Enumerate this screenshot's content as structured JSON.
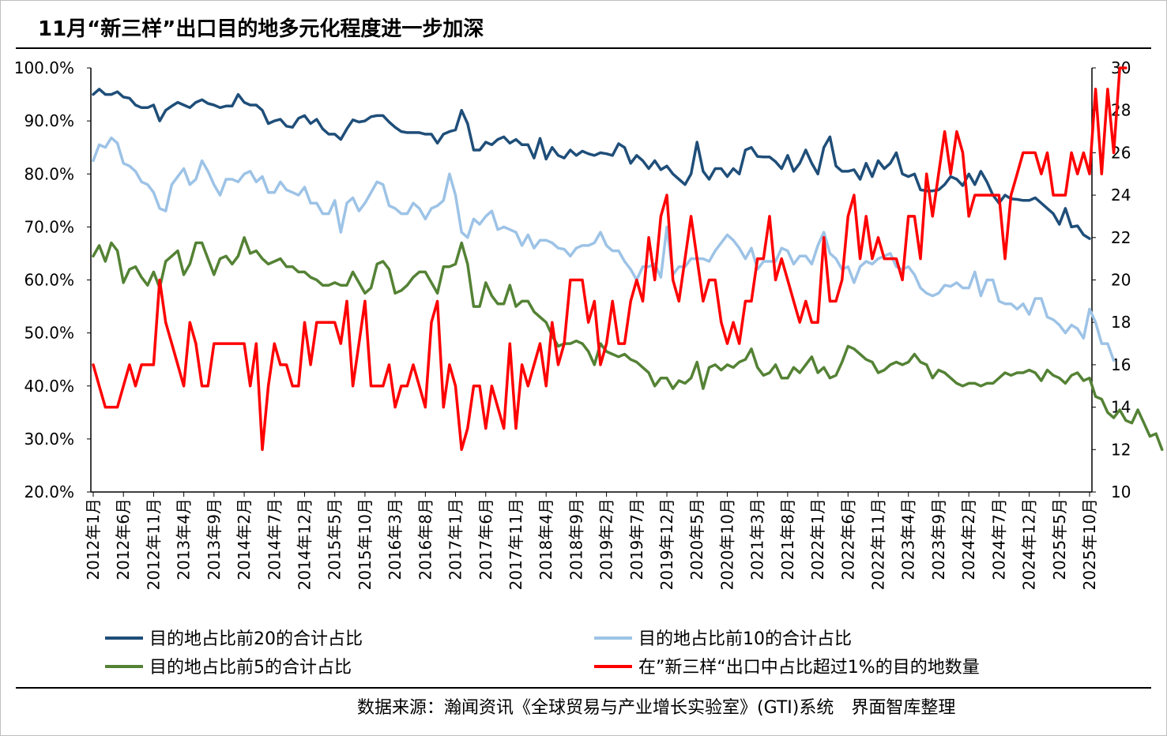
{
  "header": {
    "title": "11月“新三样”出口目的地多元化程度进一步加深"
  },
  "footer": {
    "source": "数据来源：瀚闻资讯《全球贸易与产业增长实验室》(GTI)系统　界面智库整理"
  },
  "chart_data": {
    "type": "line",
    "title": "11月“新三样”出口目的地多元化程度进一步加深",
    "left_axis": {
      "min": 20,
      "max": 100,
      "step": 10,
      "labels": [
        "100.0%",
        "90.0%",
        "80.0%",
        "70.0%",
        "60.0%",
        "50.0%",
        "40.0%",
        "30.0%",
        "20.0%"
      ]
    },
    "right_axis": {
      "min": 10,
      "max": 30,
      "step": 2,
      "labels": [
        "30",
        "28",
        "26",
        "24",
        "22",
        "20",
        "18",
        "16",
        "14",
        "12",
        "10"
      ]
    },
    "x_labels": [
      "2012年1月",
      "2012年6月",
      "2012年11月",
      "2013年4月",
      "2013年9月",
      "2014年2月",
      "2014年7月",
      "2014年12月",
      "2015年5月",
      "2015年10月",
      "2016年3月",
      "2016年8月",
      "2017年1月",
      "2017年6月",
      "2017年11月",
      "2018年4月",
      "2018年9月",
      "2019年2月",
      "2019年7月",
      "2019年12月",
      "2020年5月",
      "2020年10月",
      "2021年3月",
      "2021年8月",
      "2022年1月",
      "2022年6月",
      "2022年11月",
      "2023年4月",
      "2023年9月",
      "2024年2月",
      "2024年7月",
      "2024年12月",
      "2025年5月",
      "2025年10月"
    ],
    "legend": [
      "目的地占比前20的合计占比",
      "目的地占比前10的合计占比",
      "目的地占比前5的合计占比",
      "在”新三样“出口中占比超过1%的目的地数量"
    ],
    "series": [
      {
        "name": "目的地占比前20的合计占比",
        "axis": "left",
        "color": "#1f4e79",
        "values": [
          95.0,
          96.0,
          95.0,
          95.0,
          95.5,
          94.5,
          94.3,
          93.0,
          92.5,
          92.5,
          93.0,
          90.0,
          92.0,
          92.8,
          93.5,
          93.0,
          92.5,
          93.5,
          94.0,
          93.3,
          93.0,
          92.5,
          92.8,
          92.8,
          95.0,
          93.5,
          93.0,
          93.0,
          92.0,
          89.5,
          90.0,
          90.3,
          89.0,
          88.8,
          90.5,
          91.0,
          89.5,
          90.3,
          88.5,
          87.5,
          87.5,
          86.5,
          88.5,
          90.2,
          89.8,
          90.0,
          90.8,
          91.0,
          91.0,
          89.8,
          88.8,
          88.0,
          87.8,
          87.8,
          87.8,
          87.5,
          87.5,
          85.8,
          87.5,
          88.0,
          88.3,
          92.0,
          89.5,
          84.5,
          84.5,
          86.0,
          85.5,
          86.5,
          87.0,
          85.8,
          86.5,
          85.5,
          85.5,
          83.0,
          86.7,
          82.8,
          85.0,
          83.5,
          83.0,
          84.5,
          83.5,
          84.3,
          83.8,
          83.5,
          84.0,
          83.8,
          83.5,
          85.7,
          85.0,
          82.0,
          83.5,
          82.5,
          81.0,
          82.5,
          80.8,
          81.5,
          80.0,
          79.0,
          78.0,
          80.0,
          86.0,
          80.5,
          79.0,
          81.0,
          81.0,
          79.5,
          81.0,
          80.0,
          84.5,
          85.0,
          83.3,
          83.2,
          83.2,
          82.3,
          81.0,
          83.5,
          80.5,
          82.0,
          84.5,
          82.0,
          80.0,
          85.0,
          87.0,
          81.5,
          80.5,
          80.5,
          80.8,
          79.0,
          82.0,
          79.5,
          82.5,
          81.0,
          82.0,
          84.0,
          80.0,
          79.5,
          80.0,
          77.0,
          76.8,
          76.8,
          77.0,
          78.0,
          79.5,
          79.0,
          77.8,
          80.0,
          78.0,
          80.5,
          78.5,
          76.0,
          74.5,
          76.0,
          75.3,
          75.2,
          75.0,
          75.0,
          75.5,
          74.5,
          73.5,
          72.5,
          70.5,
          73.5,
          70.0,
          70.2,
          68.5,
          67.8
        ]
      },
      {
        "name": "目的地占比前10的合计占比",
        "axis": "left",
        "color": "#9dc3e6",
        "values": [
          82.5,
          85.5,
          85.0,
          86.8,
          85.8,
          82.0,
          81.5,
          80.5,
          78.5,
          78.0,
          76.5,
          73.5,
          73.0,
          78.0,
          79.5,
          81.0,
          78.0,
          79.0,
          82.5,
          80.5,
          78.0,
          76.0,
          79.0,
          79.0,
          78.5,
          80.0,
          80.5,
          78.5,
          79.5,
          76.5,
          76.5,
          78.5,
          77.0,
          76.5,
          76.0,
          77.5,
          74.5,
          74.5,
          72.5,
          72.5,
          75.0,
          69.0,
          74.5,
          75.5,
          73.0,
          74.5,
          76.5,
          78.5,
          78.0,
          74.0,
          73.5,
          72.5,
          72.5,
          74.5,
          73.5,
          71.5,
          73.5,
          74.0,
          75.0,
          80.0,
          76.0,
          69.0,
          68.0,
          71.5,
          70.5,
          72.0,
          73.0,
          69.5,
          70.0,
          69.5,
          69.0,
          66.5,
          68.5,
          66.0,
          67.5,
          67.5,
          67.0,
          66.0,
          65.8,
          64.5,
          66.0,
          66.5,
          66.5,
          67.0,
          69.0,
          66.5,
          65.5,
          65.5,
          63.5,
          62.0,
          60.0,
          62.5,
          62.5,
          63.0,
          60.5,
          70.0,
          61.0,
          62.5,
          62.5,
          64.0,
          64.0,
          64.0,
          63.5,
          65.5,
          67.0,
          68.5,
          67.5,
          66.0,
          64.0,
          66.0,
          62.0,
          63.5,
          63.5,
          63.5,
          66.0,
          65.5,
          63.0,
          64.5,
          64.5,
          63.0,
          66.5,
          69.0,
          65.0,
          64.0,
          62.0,
          62.5,
          59.5,
          62.5,
          63.5,
          63.0,
          64.0,
          64.5,
          65.0,
          62.5,
          62.0,
          62.5,
          61.0,
          58.5,
          57.5,
          57.0,
          57.5,
          59.0,
          58.8,
          59.5,
          58.5,
          58.5,
          61.5,
          57.0,
          60.0,
          60.0,
          56.0,
          55.5,
          55.5,
          54.5,
          55.5,
          53.5,
          56.5,
          56.5,
          53.0,
          52.5,
          51.5,
          50.0,
          51.5,
          50.8,
          49.0,
          54.5,
          52.0,
          48.0,
          48.0,
          44.8
        ]
      },
      {
        "name": "目的地占比前5的合计占比",
        "axis": "left",
        "color": "#548235",
        "values": [
          64.5,
          66.5,
          63.5,
          67.0,
          65.5,
          59.5,
          62.0,
          62.5,
          60.5,
          59.0,
          61.5,
          58.5,
          63.5,
          64.5,
          65.5,
          61.0,
          63.0,
          67.0,
          67.0,
          64.0,
          61.0,
          64.0,
          64.5,
          63.0,
          64.5,
          68.0,
          65.0,
          65.5,
          64.0,
          63.0,
          63.5,
          64.0,
          62.5,
          62.5,
          61.5,
          61.5,
          60.5,
          60.0,
          59.0,
          59.0,
          59.5,
          59.0,
          59.0,
          61.5,
          59.5,
          57.5,
          58.5,
          63.0,
          63.5,
          62.0,
          57.5,
          58.0,
          59.0,
          60.5,
          61.5,
          61.5,
          59.5,
          57.5,
          62.5,
          62.5,
          63.0,
          67.0,
          63.0,
          55.0,
          55.0,
          59.5,
          57.0,
          55.5,
          55.5,
          59.0,
          55.0,
          56.0,
          56.0,
          54.0,
          53.0,
          52.0,
          49.5,
          47.5,
          48.0,
          48.0,
          48.5,
          48.0,
          46.5,
          44.0,
          48.0,
          46.5,
          46.0,
          45.5,
          46.0,
          45.0,
          44.5,
          43.5,
          42.5,
          40.0,
          41.5,
          41.5,
          39.5,
          41.0,
          40.5,
          41.5,
          44.5,
          39.5,
          43.5,
          44.0,
          43.0,
          44.0,
          43.5,
          44.5,
          45.0,
          47.0,
          43.5,
          42.0,
          42.5,
          44.0,
          41.5,
          41.5,
          43.5,
          42.5,
          44.0,
          45.5,
          42.5,
          43.5,
          41.5,
          42.0,
          44.5,
          47.5,
          47.0,
          46.0,
          45.0,
          44.5,
          42.5,
          43.0,
          44.0,
          44.5,
          44.0,
          44.5,
          46.0,
          44.5,
          44.0,
          41.5,
          43.0,
          42.5,
          41.5,
          40.5,
          40.0,
          40.5,
          40.5,
          40.0,
          40.5,
          40.5,
          41.5,
          42.5,
          42.0,
          42.5,
          42.5,
          43.0,
          42.5,
          41.0,
          43.0,
          42.0,
          41.5,
          40.5,
          42.0,
          42.5,
          41.0,
          41.5,
          38.0,
          37.5,
          35.0,
          34.0,
          35.5,
          33.5,
          33.0,
          35.5,
          33.0,
          30.5,
          31.0,
          28.0
        ]
      },
      {
        "name": "在”新三样“出口中占比超过1%的目的地数量",
        "axis": "right",
        "color": "#ff0000",
        "values": [
          16,
          15,
          14,
          14,
          14,
          15,
          16,
          15,
          16,
          16,
          16,
          20,
          18,
          17,
          16,
          15,
          18,
          17,
          15,
          15,
          17,
          17,
          17,
          17,
          17,
          17,
          15,
          17,
          12,
          15,
          17,
          16,
          16,
          15,
          15,
          18,
          16,
          18,
          18,
          18,
          18,
          17,
          19,
          15,
          17,
          19,
          15,
          15,
          15,
          16,
          14,
          15,
          15,
          16,
          15,
          14,
          18,
          19,
          14,
          16,
          15,
          12,
          13,
          15,
          15,
          13,
          15,
          14,
          13,
          17,
          13,
          16,
          15,
          16,
          17,
          15,
          18,
          16,
          17,
          20,
          20,
          20,
          18,
          19,
          16,
          17,
          19,
          17,
          17,
          19,
          20,
          19,
          22,
          20,
          23,
          24,
          20,
          19,
          21,
          23,
          21,
          19,
          20,
          20,
          18,
          17,
          18,
          17,
          19,
          19,
          21,
          21,
          23,
          20,
          21,
          20,
          19,
          18,
          19,
          18,
          18,
          22,
          19,
          19,
          20,
          23,
          24,
          21,
          23,
          21,
          22,
          21,
          21,
          21,
          20,
          23,
          23,
          21,
          25,
          23,
          25,
          27,
          25,
          27,
          26,
          23,
          24,
          24,
          24,
          24,
          24,
          21,
          24,
          25,
          26,
          26,
          26,
          25,
          26,
          24,
          24,
          24,
          26,
          25,
          26,
          25,
          29,
          25,
          29,
          26,
          30,
          30
        ]
      }
    ]
  }
}
